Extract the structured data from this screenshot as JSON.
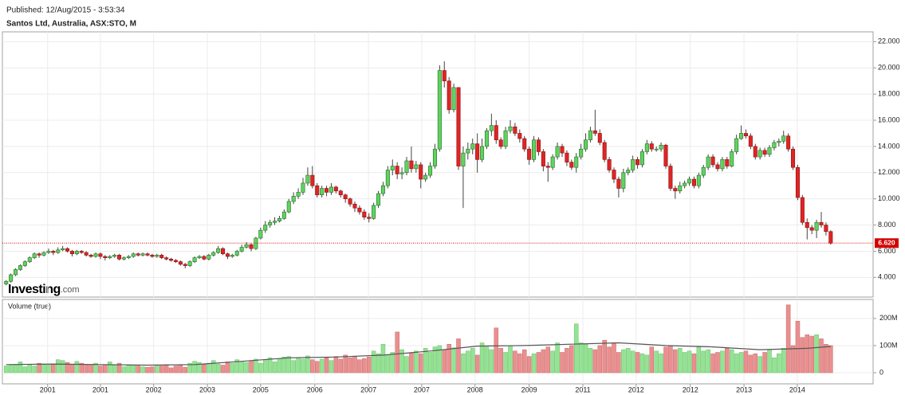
{
  "branding": {
    "name": "Investing",
    "suffix": ".com"
  },
  "chart_data": [
    {
      "type": "candlestick",
      "title": "Santos Ltd, Australia, ASX:STO, M",
      "subtitle": "Published: 12/Aug/2015 - 3:53:34",
      "up_color": "#5fd35f",
      "down_color": "#e02424",
      "xlim": [
        -0.8,
        184
      ],
      "ylim": [
        2.5,
        22.75
      ],
      "yticks": [
        {
          "value": 4,
          "label": "4.000"
        },
        {
          "value": 6,
          "label": "6.000"
        },
        {
          "value": 8,
          "label": "8.000"
        },
        {
          "value": 10,
          "label": "10.000"
        },
        {
          "value": 12,
          "label": "12.000"
        },
        {
          "value": 14,
          "label": "14.000"
        },
        {
          "value": 16,
          "label": "16.000"
        },
        {
          "value": 18,
          "label": "18.000"
        },
        {
          "value": 20,
          "label": "20.000"
        },
        {
          "value": 22,
          "label": "22.000"
        }
      ],
      "grid": true,
      "reference_line": {
        "value": 6.62,
        "label": "6.620",
        "color": "#d40000"
      },
      "open": [
        3.5,
        3.7,
        4.2,
        4.6,
        4.9,
        5.2,
        5.5,
        5.8,
        5.7,
        5.9,
        6.0,
        5.9,
        6.1,
        6.2,
        6.0,
        5.8,
        6.0,
        5.9,
        5.7,
        5.6,
        5.8,
        5.6,
        5.5,
        5.6,
        5.7,
        5.4,
        5.5,
        5.6,
        5.8,
        5.7,
        5.8,
        5.7,
        5.6,
        5.7,
        5.5,
        5.4,
        5.3,
        5.2,
        5.0,
        4.9,
        5.2,
        5.5,
        5.6,
        5.4,
        5.7,
        5.9,
        6.2,
        5.8,
        5.6,
        5.7,
        6.0,
        6.3,
        6.5,
        6.2,
        7.0,
        7.6,
        8.0,
        8.2,
        8.3,
        8.5,
        9.0,
        9.8,
        10.2,
        10.5,
        11.2,
        11.8,
        11.0,
        10.3,
        10.8,
        10.5,
        10.9,
        10.6,
        10.3,
        10.0,
        9.6,
        9.3,
        9.0,
        8.6,
        8.5,
        9.5,
        10.4,
        11.0,
        12.2,
        12.5,
        11.9,
        12.0,
        12.9,
        12.3,
        12.6,
        11.5,
        11.8,
        12.5,
        13.8,
        19.8,
        19.0,
        16.8,
        18.5,
        12.5,
        13.5,
        13.8,
        14.2,
        13.0,
        14.0,
        15.2,
        15.6,
        14.5,
        14.0,
        15.2,
        15.5,
        15.0,
        14.6,
        13.8,
        13.0,
        14.5,
        13.6,
        12.5,
        12.4,
        13.2,
        14.0,
        13.5,
        12.8,
        12.4,
        13.2,
        13.8,
        14.5,
        15.2,
        15.0,
        14.3,
        13.0,
        12.2,
        11.5,
        10.8,
        12.0,
        12.2,
        13.0,
        12.6,
        13.6,
        14.2,
        13.8,
        13.8,
        14.1,
        12.5,
        10.8,
        10.6,
        11.0,
        11.2,
        11.5,
        11.0,
        11.8,
        12.4,
        13.2,
        12.6,
        12.3,
        13.0,
        12.5,
        13.6,
        14.6,
        15.0,
        14.8,
        14.0,
        13.2,
        13.7,
        13.4,
        13.9,
        14.3,
        14.4,
        14.8,
        13.8,
        12.4,
        10.1,
        8.2,
        7.8,
        7.6,
        8.2,
        8.0,
        7.5
      ],
      "high": [
        3.8,
        4.3,
        4.7,
        5.0,
        5.3,
        5.6,
        5.9,
        5.9,
        6.0,
        6.2,
        6.1,
        6.3,
        6.4,
        6.3,
        6.1,
        6.1,
        6.1,
        6.0,
        5.8,
        5.9,
        5.9,
        5.7,
        5.7,
        5.8,
        5.8,
        5.6,
        5.7,
        5.9,
        5.9,
        5.9,
        5.9,
        5.8,
        5.8,
        5.8,
        5.6,
        5.5,
        5.4,
        5.3,
        5.1,
        5.3,
        5.6,
        5.7,
        5.7,
        5.8,
        6.0,
        6.4,
        6.3,
        5.9,
        5.8,
        6.1,
        6.5,
        6.7,
        6.6,
        7.1,
        7.8,
        8.3,
        8.4,
        8.6,
        8.7,
        9.2,
        10.0,
        10.5,
        10.8,
        11.6,
        12.4,
        12.5,
        11.2,
        11.0,
        11.0,
        11.2,
        11.0,
        10.7,
        10.4,
        10.1,
        9.8,
        9.5,
        9.2,
        8.9,
        9.7,
        10.6,
        11.3,
        12.5,
        13.0,
        12.8,
        12.4,
        13.2,
        14.0,
        12.9,
        12.8,
        12.0,
        12.8,
        14.2,
        20.2,
        20.5,
        19.3,
        18.8,
        18.5,
        14.0,
        14.3,
        14.6,
        15.0,
        14.6,
        15.4,
        16.5,
        16.0,
        14.7,
        15.5,
        16.0,
        15.8,
        15.3,
        14.8,
        14.0,
        14.8,
        14.7,
        13.8,
        12.8,
        13.4,
        14.3,
        14.2,
        13.7,
        13.0,
        13.5,
        14.2,
        15.0,
        15.5,
        16.8,
        15.3,
        14.5,
        13.2,
        12.4,
        11.7,
        12.3,
        12.4,
        13.3,
        13.2,
        13.8,
        14.5,
        14.4,
        14.0,
        14.3,
        14.2,
        12.7,
        11.0,
        11.3,
        11.4,
        11.7,
        11.7,
        12.0,
        12.6,
        13.4,
        13.4,
        12.8,
        13.2,
        13.2,
        13.8,
        14.9,
        15.6,
        15.3,
        15.0,
        14.2,
        13.9,
        13.9,
        14.1,
        14.5,
        14.6,
        15.2,
        15.0,
        14.0,
        12.6,
        10.3,
        8.5,
        8.0,
        8.4,
        9.0,
        8.2,
        7.6
      ],
      "low": [
        3.4,
        3.6,
        4.1,
        4.5,
        4.8,
        5.1,
        5.4,
        5.5,
        5.6,
        5.8,
        5.7,
        5.8,
        6.0,
        5.9,
        5.6,
        5.7,
        5.8,
        5.6,
        5.5,
        5.5,
        5.4,
        5.3,
        5.4,
        5.5,
        5.3,
        5.3,
        5.4,
        5.5,
        5.6,
        5.6,
        5.6,
        5.5,
        5.5,
        5.4,
        5.3,
        5.2,
        5.1,
        4.9,
        4.7,
        4.8,
        5.1,
        5.4,
        5.3,
        5.3,
        5.6,
        5.8,
        5.7,
        5.4,
        5.5,
        5.6,
        5.9,
        6.2,
        6.0,
        6.1,
        6.9,
        7.4,
        7.8,
        8.0,
        8.2,
        8.4,
        8.9,
        9.6,
        10.0,
        10.3,
        11.0,
        10.8,
        10.1,
        10.1,
        10.2,
        10.3,
        10.4,
        10.1,
        9.7,
        9.4,
        9.0,
        8.8,
        8.4,
        8.2,
        8.4,
        9.3,
        10.2,
        10.8,
        11.8,
        11.5,
        11.5,
        11.8,
        12.0,
        12.0,
        10.8,
        11.3,
        11.6,
        12.3,
        13.6,
        18.5,
        16.5,
        16.6,
        12.2,
        9.3,
        13.0,
        13.4,
        12.0,
        12.8,
        13.8,
        14.8,
        14.2,
        13.8,
        13.8,
        15.0,
        14.8,
        14.3,
        13.6,
        12.6,
        12.8,
        13.3,
        12.1,
        11.3,
        12.2,
        13.0,
        13.2,
        12.5,
        12.2,
        12.0,
        13.0,
        13.6,
        14.3,
        14.8,
        14.1,
        12.8,
        12.0,
        11.2,
        10.1,
        10.5,
        11.8,
        12.0,
        12.3,
        12.4,
        13.4,
        13.6,
        13.6,
        13.6,
        12.3,
        10.6,
        10.0,
        10.4,
        10.8,
        11.0,
        10.8,
        10.8,
        11.6,
        12.2,
        12.4,
        12.1,
        12.1,
        12.3,
        12.4,
        13.4,
        14.5,
        14.6,
        13.8,
        13.0,
        13.0,
        13.2,
        13.2,
        13.7,
        14.0,
        14.2,
        13.6,
        12.2,
        9.9,
        8.0,
        6.9,
        7.3,
        7.0,
        7.8,
        7.2,
        6.5
      ],
      "close": [
        3.7,
        4.2,
        4.6,
        4.9,
        5.2,
        5.5,
        5.8,
        5.7,
        5.9,
        6.0,
        5.9,
        6.1,
        6.2,
        6.0,
        5.8,
        6.0,
        5.9,
        5.7,
        5.6,
        5.8,
        5.6,
        5.5,
        5.6,
        5.7,
        5.4,
        5.5,
        5.6,
        5.8,
        5.7,
        5.8,
        5.7,
        5.6,
        5.7,
        5.5,
        5.4,
        5.3,
        5.2,
        5.0,
        4.9,
        5.2,
        5.5,
        5.6,
        5.4,
        5.7,
        5.9,
        6.2,
        5.8,
        5.6,
        5.7,
        6.0,
        6.3,
        6.5,
        6.2,
        7.0,
        7.6,
        8.0,
        8.2,
        8.3,
        8.5,
        9.0,
        9.8,
        10.2,
        10.5,
        11.2,
        11.8,
        11.0,
        10.3,
        10.8,
        10.5,
        10.9,
        10.6,
        10.3,
        10.0,
        9.6,
        9.3,
        9.0,
        8.6,
        8.5,
        9.5,
        10.4,
        11.0,
        12.2,
        12.5,
        11.9,
        12.0,
        12.9,
        12.3,
        12.6,
        11.5,
        11.8,
        12.5,
        13.8,
        19.8,
        19.0,
        16.8,
        18.5,
        12.5,
        13.5,
        13.8,
        14.2,
        13.0,
        14.0,
        15.2,
        15.6,
        14.5,
        14.0,
        15.2,
        15.5,
        15.0,
        14.6,
        13.8,
        13.0,
        14.5,
        13.6,
        12.5,
        12.4,
        13.2,
        14.0,
        13.5,
        12.8,
        12.4,
        13.2,
        13.8,
        14.5,
        15.2,
        15.0,
        14.3,
        13.0,
        12.2,
        11.5,
        10.8,
        12.0,
        12.2,
        13.0,
        12.6,
        13.6,
        14.2,
        13.8,
        13.8,
        14.1,
        12.5,
        10.8,
        10.6,
        11.0,
        11.2,
        11.5,
        11.0,
        11.8,
        12.4,
        13.2,
        12.6,
        12.3,
        13.0,
        12.5,
        13.6,
        14.6,
        15.0,
        14.8,
        14.0,
        13.2,
        13.7,
        13.4,
        13.9,
        14.3,
        14.4,
        14.8,
        13.8,
        12.4,
        10.1,
        8.2,
        7.8,
        7.6,
        8.2,
        8.0,
        7.5,
        6.62
      ]
    },
    {
      "type": "volume",
      "title": "Volume (true)",
      "up_color": "#93e393",
      "down_color": "#ea8f8f",
      "xlim": [
        -0.8,
        184
      ],
      "ylim": [
        -41,
        270
      ],
      "yticks": [
        {
          "value": 0,
          "label": "0"
        },
        {
          "value": 100,
          "label": "100M"
        },
        {
          "value": 200,
          "label": "200M"
        }
      ],
      "xticks": [
        {
          "value": 8.8,
          "label": "2001"
        },
        {
          "value": 20.0,
          "label": "2001"
        },
        {
          "value": 31.3,
          "label": "2002"
        },
        {
          "value": 42.7,
          "label": "2003"
        },
        {
          "value": 54.0,
          "label": "2005"
        },
        {
          "value": 65.5,
          "label": "2006"
        },
        {
          "value": 76.9,
          "label": "2007"
        },
        {
          "value": 88.2,
          "label": "2007"
        },
        {
          "value": 99.5,
          "label": "2008"
        },
        {
          "value": 111.0,
          "label": "2009"
        },
        {
          "value": 122.4,
          "label": "2011"
        },
        {
          "value": 133.7,
          "label": "2012"
        },
        {
          "value": 145.2,
          "label": "2012"
        },
        {
          "value": 156.6,
          "label": "2013"
        },
        {
          "value": 167.9,
          "label": "2014"
        }
      ],
      "values": [
        25,
        30,
        28,
        40,
        22,
        30,
        25,
        35,
        30,
        28,
        32,
        48,
        45,
        38,
        30,
        42,
        35,
        30,
        28,
        35,
        25,
        30,
        40,
        28,
        35,
        22,
        30,
        28,
        25,
        22,
        20,
        22,
        28,
        25,
        30,
        18,
        25,
        28,
        20,
        35,
        42,
        38,
        30,
        35,
        45,
        32,
        28,
        40,
        35,
        48,
        42,
        38,
        45,
        50,
        35,
        48,
        55,
        40,
        52,
        58,
        60,
        45,
        55,
        50,
        62,
        48,
        42,
        50,
        55,
        45,
        60,
        50,
        65,
        55,
        60,
        48,
        52,
        58,
        80,
        70,
        105,
        65,
        75,
        150,
        85,
        60,
        72,
        80,
        70,
        90,
        75,
        95,
        100,
        85,
        105,
        92,
        125,
        70,
        80,
        90,
        65,
        110,
        95,
        85,
        165,
        90,
        75,
        100,
        80,
        70,
        85,
        60,
        70,
        75,
        85,
        95,
        80,
        110,
        75,
        90,
        100,
        180,
        110,
        105,
        90,
        85,
        100,
        120,
        95,
        110,
        75,
        85,
        90,
        80,
        75,
        70,
        65,
        95,
        80,
        70,
        95,
        100,
        85,
        90,
        75,
        80,
        70,
        95,
        80,
        85,
        70,
        75,
        80,
        90,
        85,
        70,
        75,
        80,
        65,
        70,
        60,
        75,
        85,
        55,
        70,
        90,
        250,
        100,
        190,
        130,
        140,
        135,
        140,
        125,
        105,
        100
      ],
      "line": {
        "color": "#555555",
        "x": [
          0,
          10,
          20,
          30,
          40,
          50,
          60,
          70,
          80,
          90,
          100,
          110,
          120,
          130,
          140,
          150,
          160,
          170,
          175
        ],
        "values": [
          30,
          32,
          30,
          28,
          30,
          42,
          55,
          58,
          65,
          80,
          98,
          100,
          105,
          110,
          100,
          95,
          85,
          90,
          97
        ]
      }
    }
  ]
}
